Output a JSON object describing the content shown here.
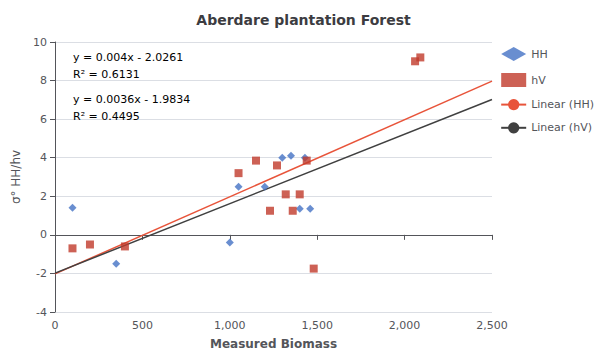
{
  "chart_data": {
    "type": "scatter",
    "title": "Aberdare plantation Forest",
    "xlabel": "Measured Biomass",
    "ylabel": "σ° HH/hv",
    "xlim": [
      0,
      2500
    ],
    "ylim": [
      -4,
      10
    ],
    "xticks": [
      0,
      500,
      1000,
      1500,
      2000,
      2500
    ],
    "yticks": [
      -4,
      -2,
      0,
      2,
      4,
      6,
      8,
      10
    ],
    "grid": true,
    "legend": "right",
    "series": [
      {
        "name": "HH",
        "type": "scatter",
        "marker": "diamond",
        "color": "#4472c4",
        "x": [
          100,
          350,
          1000,
          1050,
          1200,
          1300,
          1350,
          1400,
          1430,
          1460
        ],
        "values": [
          1.4,
          -1.5,
          -0.4,
          2.5,
          2.5,
          4.0,
          4.1,
          1.35,
          4.0,
          1.35
        ]
      },
      {
        "name": "hV",
        "type": "scatter",
        "marker": "square",
        "color": "#c0392b",
        "x": [
          100,
          200,
          400,
          1050,
          1150,
          1230,
          1270,
          1320,
          1360,
          1400,
          1440,
          1480,
          2060,
          2090
        ],
        "values": [
          -0.7,
          -0.5,
          -0.6,
          3.2,
          3.85,
          1.25,
          3.6,
          2.1,
          1.25,
          2.1,
          3.85,
          -1.75,
          9.0,
          9.2
        ]
      },
      {
        "name": "Linear (HH)",
        "type": "line",
        "line_style": "solid",
        "color": "#e8543a",
        "x": [
          0,
          2500
        ],
        "values": [
          -2.0261,
          7.9739
        ]
      },
      {
        "name": "Linear (hV)",
        "type": "line",
        "line_style": "solid",
        "color": "#404040",
        "x": [
          0,
          2500
        ],
        "values": [
          -1.9834,
          7.0166
        ]
      }
    ],
    "annotations": [
      "y = 0.004x - 2.0261",
      "R² = 0.6131",
      "y = 0.0036x - 1.9834",
      "R² = 0.4495"
    ]
  }
}
